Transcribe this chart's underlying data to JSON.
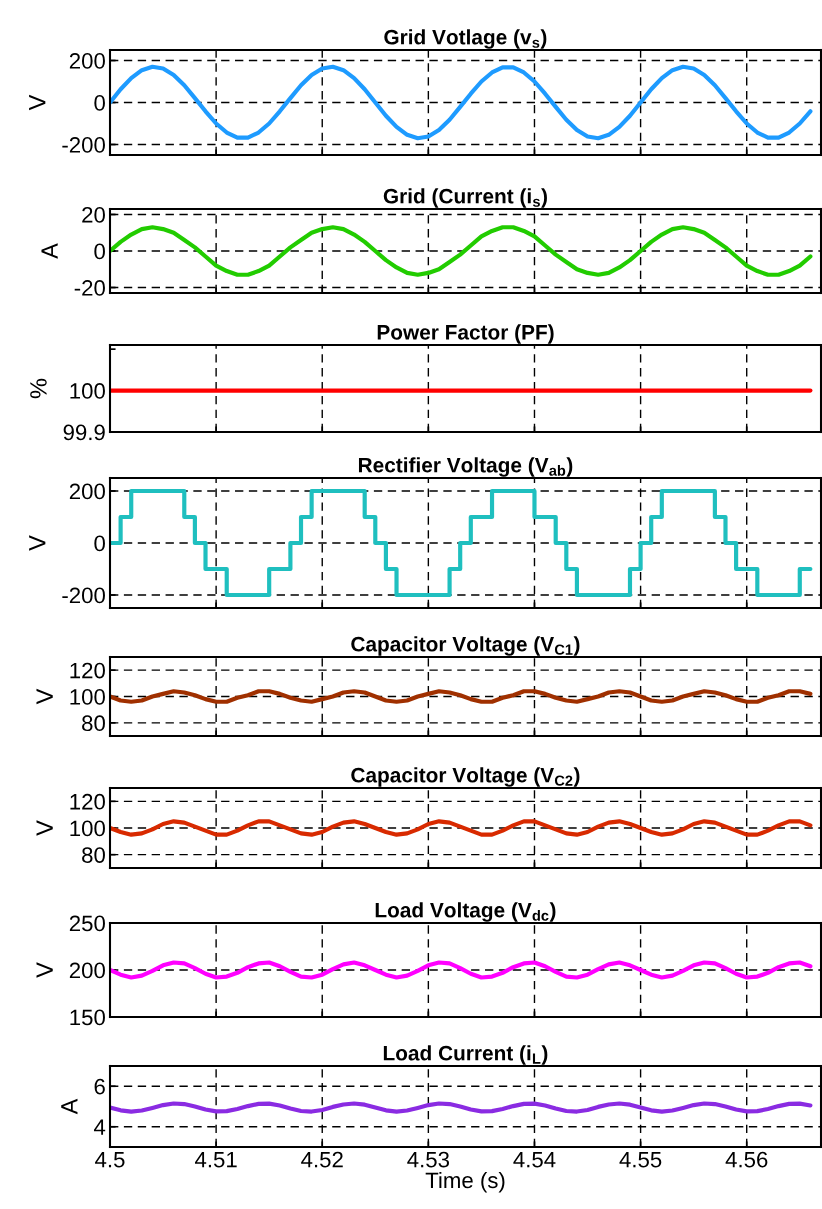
{
  "chart_data": [
    {
      "type": "line",
      "title": "Grid Votlage (v$_{s}$)",
      "ylabel": "V",
      "xlim": [
        4.5,
        4.567
      ],
      "xticks": [
        4.5,
        4.51,
        4.52,
        4.53,
        4.54,
        4.55,
        4.56
      ],
      "ylim": [
        -250,
        250
      ],
      "yticks": [
        -200,
        0,
        200
      ],
      "grid": true,
      "tick_labels": "y",
      "x": [
        4.5,
        4.501,
        4.502,
        4.503,
        4.504,
        4.505,
        4.506,
        4.507,
        4.508,
        4.509,
        4.51,
        4.511,
        4.512,
        4.513,
        4.514,
        4.515,
        4.516,
        4.517,
        4.518,
        4.519,
        4.52,
        4.521,
        4.522,
        4.523,
        4.524,
        4.525,
        4.526,
        4.527,
        4.528,
        4.529,
        4.53,
        4.531,
        4.532,
        4.533,
        4.534,
        4.535,
        4.536,
        4.537,
        4.538,
        4.539,
        4.54,
        4.541,
        4.542,
        4.543,
        4.544,
        4.545,
        4.546,
        4.547,
        4.548,
        4.549,
        4.55,
        4.551,
        4.552,
        4.553,
        4.554,
        4.555,
        4.556,
        4.557,
        4.558,
        4.559,
        4.56,
        4.561,
        4.562,
        4.563,
        4.564,
        4.565,
        4.566
      ],
      "series": [
        {
          "color": "#1e9bff",
          "values": [
            0,
            63,
            116,
            154,
            170,
            162,
            131,
            82,
            21,
            -42,
            -100,
            -143,
            -167,
            -167,
            -143,
            -100,
            -42,
            21,
            82,
            131,
            162,
            170,
            154,
            116,
            63,
            0,
            -63,
            -116,
            -154,
            -170,
            -162,
            -131,
            -82,
            -21,
            42,
            100,
            143,
            167,
            167,
            143,
            100,
            42,
            -21,
            -82,
            -131,
            -162,
            -170,
            -154,
            -116,
            -63,
            0,
            63,
            116,
            154,
            170,
            162,
            131,
            82,
            21,
            -42,
            -100,
            -143,
            -167,
            -167,
            -143,
            -100,
            -42
          ]
        }
      ]
    },
    {
      "type": "line",
      "title": "Grid (Current (i$_{s}$)",
      "ylabel": "A",
      "xlim": [
        4.5,
        4.567
      ],
      "xticks": [
        4.5,
        4.51,
        4.52,
        4.53,
        4.54,
        4.55,
        4.56
      ],
      "ylim": [
        -23,
        23
      ],
      "yticks": [
        -20,
        0,
        20
      ],
      "grid": true,
      "tick_labels": "y",
      "x": [
        4.5,
        4.501,
        4.502,
        4.503,
        4.504,
        4.505,
        4.506,
        4.507,
        4.508,
        4.509,
        4.51,
        4.511,
        4.512,
        4.513,
        4.514,
        4.515,
        4.516,
        4.517,
        4.518,
        4.519,
        4.52,
        4.521,
        4.522,
        4.523,
        4.524,
        4.525,
        4.526,
        4.527,
        4.528,
        4.529,
        4.53,
        4.531,
        4.532,
        4.533,
        4.534,
        4.535,
        4.536,
        4.537,
        4.538,
        4.539,
        4.54,
        4.541,
        4.542,
        4.543,
        4.544,
        4.545,
        4.546,
        4.547,
        4.548,
        4.549,
        4.55,
        4.551,
        4.552,
        4.553,
        4.554,
        4.555,
        4.556,
        4.557,
        4.558,
        4.559,
        4.56,
        4.561,
        4.562,
        4.563,
        4.564,
        4.565,
        4.566
      ],
      "series": [
        {
          "color": "#22cc00",
          "values": [
            0,
            5,
            9,
            12,
            13,
            12,
            10,
            6,
            2,
            -3,
            -8,
            -11,
            -13,
            -13,
            -11,
            -8,
            -3,
            2,
            6,
            10,
            12,
            13,
            12,
            9,
            5,
            0,
            -5,
            -9,
            -12,
            -13,
            -12,
            -10,
            -6,
            -2,
            3,
            8,
            11,
            13,
            13,
            11,
            8,
            3,
            -2,
            -6,
            -10,
            -12,
            -13,
            -12,
            -9,
            -5,
            0,
            5,
            9,
            12,
            13,
            12,
            10,
            6,
            2,
            -3,
            -8,
            -11,
            -13,
            -13,
            -11,
            -8,
            -3
          ]
        }
      ]
    },
    {
      "type": "line",
      "title": "Power Factor (PF)",
      "ylabel": "%",
      "xlim": [
        4.5,
        4.567
      ],
      "xticks": [
        4.5,
        4.51,
        4.52,
        4.53,
        4.54,
        4.55,
        4.56
      ],
      "ylim": [
        99.9,
        100.11
      ],
      "yticks": [
        99.9,
        100,
        {
          "value": 100.1,
          "label": null
        }
      ],
      "grid": "x",
      "tick_labels": "y",
      "x": [
        4.5,
        4.566
      ],
      "series": [
        {
          "color": "#ff0000",
          "values": [
            100,
            100
          ]
        }
      ]
    },
    {
      "type": "step",
      "title": "Rectifier Voltage (V$_{ab}$)",
      "ylabel": "V",
      "xlim": [
        4.5,
        4.567
      ],
      "xticks": [
        4.5,
        4.51,
        4.52,
        4.53,
        4.54,
        4.55,
        4.56
      ],
      "ylim": [
        -250,
        250
      ],
      "yticks": [
        -200,
        0,
        200
      ],
      "grid": true,
      "tick_labels": "y",
      "x": [
        4.5,
        4.501,
        4.502,
        4.503,
        4.504,
        4.505,
        4.506,
        4.507,
        4.508,
        4.509,
        4.51,
        4.511,
        4.512,
        4.513,
        4.514,
        4.515,
        4.516,
        4.517,
        4.518,
        4.519,
        4.52,
        4.521,
        4.522,
        4.523,
        4.524,
        4.525,
        4.526,
        4.527,
        4.528,
        4.529,
        4.53,
        4.531,
        4.532,
        4.533,
        4.534,
        4.535,
        4.536,
        4.537,
        4.538,
        4.539,
        4.54,
        4.541,
        4.542,
        4.543,
        4.544,
        4.545,
        4.546,
        4.547,
        4.548,
        4.549,
        4.55,
        4.551,
        4.552,
        4.553,
        4.554,
        4.555,
        4.556,
        4.557,
        4.558,
        4.559,
        4.56,
        4.561,
        4.562,
        4.563,
        4.564,
        4.565,
        4.566
      ],
      "series": [
        {
          "color": "#1fbfbf",
          "values": [
            0,
            100,
            200,
            200,
            200,
            200,
            200,
            100,
            0,
            -100,
            -100,
            -200,
            -200,
            -200,
            -200,
            -100,
            -100,
            0,
            100,
            200,
            200,
            200,
            200,
            200,
            100,
            0,
            -100,
            -200,
            -200,
            -200,
            -200,
            -200,
            -100,
            0,
            100,
            100,
            200,
            200,
            200,
            200,
            100,
            100,
            0,
            -100,
            -200,
            -200,
            -200,
            -200,
            -200,
            -100,
            0,
            100,
            200,
            200,
            200,
            200,
            200,
            100,
            0,
            -100,
            -100,
            -200,
            -200,
            -200,
            -200,
            -100,
            -100
          ]
        }
      ]
    },
    {
      "type": "line",
      "title": "Capacitor Voltage (V$_{C1}$)",
      "ylabel": "V",
      "xlim": [
        4.5,
        4.567
      ],
      "xticks": [
        4.5,
        4.51,
        4.52,
        4.53,
        4.54,
        4.55,
        4.56
      ],
      "ylim": [
        70,
        130
      ],
      "yticks": [
        80,
        100,
        120
      ],
      "grid": true,
      "tick_labels": "y",
      "x": [
        4.5,
        4.501,
        4.502,
        4.503,
        4.504,
        4.505,
        4.506,
        4.507,
        4.508,
        4.509,
        4.51,
        4.511,
        4.512,
        4.513,
        4.514,
        4.515,
        4.516,
        4.517,
        4.518,
        4.519,
        4.52,
        4.521,
        4.522,
        4.523,
        4.524,
        4.525,
        4.526,
        4.527,
        4.528,
        4.529,
        4.53,
        4.531,
        4.532,
        4.533,
        4.534,
        4.535,
        4.536,
        4.537,
        4.538,
        4.539,
        4.54,
        4.541,
        4.542,
        4.543,
        4.544,
        4.545,
        4.546,
        4.547,
        4.548,
        4.549,
        4.55,
        4.551,
        4.552,
        4.553,
        4.554,
        4.555,
        4.556,
        4.557,
        4.558,
        4.559,
        4.56,
        4.561,
        4.562,
        4.563,
        4.564,
        4.565,
        4.566
      ],
      "series": [
        {
          "color": "#a03000",
          "values": [
            100,
            97,
            96,
            97,
            100,
            102,
            104,
            103,
            101,
            98,
            96,
            96,
            99,
            101,
            104,
            104,
            102,
            99,
            97,
            96,
            98,
            100,
            103,
            104,
            103,
            100,
            97,
            96,
            97,
            100,
            102,
            104,
            103,
            101,
            98,
            96,
            96,
            99,
            101,
            104,
            104,
            102,
            99,
            97,
            96,
            98,
            100,
            103,
            104,
            103,
            100,
            97,
            96,
            97,
            100,
            102,
            104,
            103,
            101,
            98,
            96,
            96,
            99,
            101,
            104,
            104,
            102
          ]
        }
      ]
    },
    {
      "type": "line",
      "title": "Capacitor Voltage (V$_{C2}$)",
      "ylabel": "V",
      "xlim": [
        4.5,
        4.567
      ],
      "xticks": [
        4.5,
        4.51,
        4.52,
        4.53,
        4.54,
        4.55,
        4.56
      ],
      "ylim": [
        70,
        130
      ],
      "yticks": [
        80,
        100,
        120
      ],
      "grid": true,
      "tick_labels": "y",
      "x": [
        4.5,
        4.501,
        4.502,
        4.503,
        4.504,
        4.505,
        4.506,
        4.507,
        4.508,
        4.509,
        4.51,
        4.511,
        4.512,
        4.513,
        4.514,
        4.515,
        4.516,
        4.517,
        4.518,
        4.519,
        4.52,
        4.521,
        4.522,
        4.523,
        4.524,
        4.525,
        4.526,
        4.527,
        4.528,
        4.529,
        4.53,
        4.531,
        4.532,
        4.533,
        4.534,
        4.535,
        4.536,
        4.537,
        4.538,
        4.539,
        4.54,
        4.541,
        4.542,
        4.543,
        4.544,
        4.545,
        4.546,
        4.547,
        4.548,
        4.549,
        4.55,
        4.551,
        4.552,
        4.553,
        4.554,
        4.555,
        4.556,
        4.557,
        4.558,
        4.559,
        4.56,
        4.561,
        4.562,
        4.563,
        4.564,
        4.565,
        4.566
      ],
      "series": [
        {
          "color": "#d82a00",
          "values": [
            100,
            97,
            95,
            96,
            99,
            103,
            105,
            104,
            101,
            98,
            95,
            95,
            98,
            102,
            105,
            105,
            102,
            99,
            96,
            95,
            97,
            101,
            104,
            105,
            103,
            100,
            97,
            95,
            96,
            99,
            103,
            105,
            104,
            101,
            98,
            95,
            95,
            98,
            102,
            105,
            105,
            102,
            99,
            96,
            95,
            97,
            101,
            104,
            105,
            103,
            100,
            97,
            95,
            96,
            99,
            103,
            105,
            104,
            101,
            98,
            95,
            95,
            98,
            102,
            105,
            105,
            102
          ]
        }
      ]
    },
    {
      "type": "line",
      "title": "Load Voltage (V$_{dc}$)",
      "ylabel": "V",
      "xlim": [
        4.5,
        4.567
      ],
      "xticks": [
        4.5,
        4.51,
        4.52,
        4.53,
        4.54,
        4.55,
        4.56
      ],
      "ylim": [
        150,
        250
      ],
      "yticks": [
        150,
        200,
        250
      ],
      "grid": true,
      "tick_labels": "y",
      "x": [
        4.5,
        4.501,
        4.502,
        4.503,
        4.504,
        4.505,
        4.506,
        4.507,
        4.508,
        4.509,
        4.51,
        4.511,
        4.512,
        4.513,
        4.514,
        4.515,
        4.516,
        4.517,
        4.518,
        4.519,
        4.52,
        4.521,
        4.522,
        4.523,
        4.524,
        4.525,
        4.526,
        4.527,
        4.528,
        4.529,
        4.53,
        4.531,
        4.532,
        4.533,
        4.534,
        4.535,
        4.536,
        4.537,
        4.538,
        4.539,
        4.54,
        4.541,
        4.542,
        4.543,
        4.544,
        4.545,
        4.546,
        4.547,
        4.548,
        4.549,
        4.55,
        4.551,
        4.552,
        4.553,
        4.554,
        4.555,
        4.556,
        4.557,
        4.558,
        4.559,
        4.56,
        4.561,
        4.562,
        4.563,
        4.564,
        4.565,
        4.566
      ],
      "series": [
        {
          "color": "#ff00ff",
          "values": [
            200,
            195,
            192,
            194,
            199,
            205,
            208,
            207,
            202,
            196,
            192,
            193,
            197,
            203,
            207,
            208,
            204,
            198,
            193,
            192,
            195,
            201,
            206,
            208,
            205,
            200,
            195,
            192,
            194,
            199,
            205,
            208,
            207,
            202,
            196,
            192,
            193,
            197,
            203,
            207,
            208,
            204,
            198,
            193,
            192,
            195,
            201,
            206,
            208,
            205,
            200,
            195,
            192,
            194,
            199,
            205,
            208,
            207,
            202,
            196,
            192,
            193,
            197,
            203,
            207,
            208,
            204
          ]
        }
      ]
    },
    {
      "type": "line",
      "title": "Load Current (i$_{L}$)",
      "ylabel": "A",
      "xlabel": "Time (s)",
      "xlim": [
        4.5,
        4.567
      ],
      "xticks": [
        4.5,
        4.51,
        4.52,
        4.53,
        4.54,
        4.55,
        4.56
      ],
      "ylim": [
        3,
        7
      ],
      "yticks": [
        4,
        6
      ],
      "grid": true,
      "x": [
        4.5,
        4.501,
        4.502,
        4.503,
        4.504,
        4.505,
        4.506,
        4.507,
        4.508,
        4.509,
        4.51,
        4.511,
        4.512,
        4.513,
        4.514,
        4.515,
        4.516,
        4.517,
        4.518,
        4.519,
        4.52,
        4.521,
        4.522,
        4.523,
        4.524,
        4.525,
        4.526,
        4.527,
        4.528,
        4.529,
        4.53,
        4.531,
        4.532,
        4.533,
        4.534,
        4.535,
        4.536,
        4.537,
        4.538,
        4.539,
        4.54,
        4.541,
        4.542,
        4.543,
        4.544,
        4.545,
        4.546,
        4.547,
        4.548,
        4.549,
        4.55,
        4.551,
        4.552,
        4.553,
        4.554,
        4.555,
        4.556,
        4.557,
        4.558,
        4.559,
        4.56,
        4.561,
        4.562,
        4.563,
        4.564,
        4.565,
        4.566
      ],
      "series": [
        {
          "color": "#8a2be2",
          "values": [
            4.95,
            4.81,
            4.75,
            4.8,
            4.93,
            5.07,
            5.15,
            5.12,
            5,
            4.85,
            4.76,
            4.77,
            4.88,
            5.02,
            5.13,
            5.14,
            5.05,
            4.9,
            4.78,
            4.75,
            4.83,
            4.98,
            5.1,
            5.15,
            5.09,
            4.95,
            4.81,
            4.75,
            4.8,
            4.93,
            5.07,
            5.15,
            5.12,
            5,
            4.85,
            4.76,
            4.77,
            4.88,
            5.02,
            5.13,
            5.14,
            5.05,
            4.9,
            4.78,
            4.75,
            4.83,
            4.98,
            5.1,
            5.15,
            5.09,
            4.95,
            4.81,
            4.75,
            4.8,
            4.93,
            5.07,
            5.15,
            5.12,
            5,
            4.85,
            4.76,
            4.77,
            4.88,
            5.02,
            5.13,
            5.14,
            5.05
          ]
        }
      ]
    }
  ]
}
